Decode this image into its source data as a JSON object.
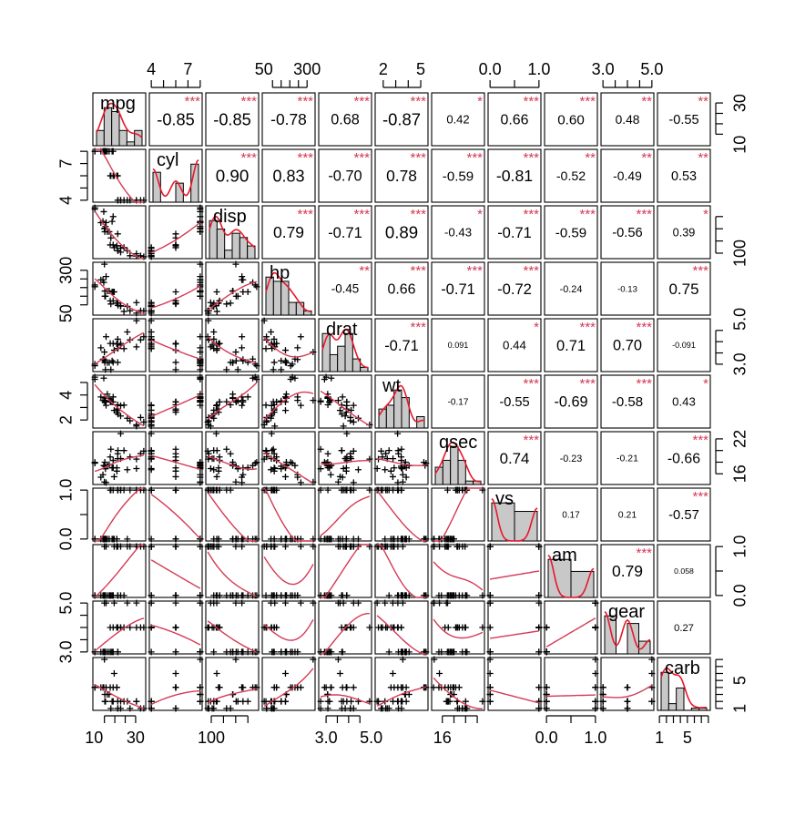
{
  "chart_data": {
    "type": "scatter",
    "title": "",
    "variables": [
      "mpg",
      "cyl",
      "disp",
      "hp",
      "drat",
      "wt",
      "qsec",
      "vs",
      "am",
      "gear",
      "carb"
    ],
    "ranges": {
      "mpg": [
        10.4,
        33.9
      ],
      "cyl": [
        4,
        8
      ],
      "disp": [
        71.1,
        472
      ],
      "hp": [
        52,
        335
      ],
      "drat": [
        2.76,
        4.93
      ],
      "wt": [
        1.513,
        5.424
      ],
      "qsec": [
        14.5,
        22.9
      ],
      "vs": [
        0,
        1
      ],
      "am": [
        0,
        1
      ],
      "gear": [
        3,
        5
      ],
      "carb": [
        1,
        8
      ]
    },
    "data": {
      "mpg": [
        21,
        21,
        22.8,
        21.4,
        18.7,
        18.1,
        14.3,
        24.4,
        22.8,
        19.2,
        17.8,
        16.4,
        17.3,
        15.2,
        10.4,
        10.4,
        14.7,
        32.4,
        30.4,
        33.9,
        21.5,
        15.5,
        15.2,
        13.3,
        19.2,
        27.3,
        26,
        30.4,
        15.8,
        19.7,
        15,
        21.4
      ],
      "cyl": [
        6,
        6,
        4,
        6,
        8,
        6,
        8,
        4,
        4,
        6,
        6,
        8,
        8,
        8,
        8,
        8,
        8,
        4,
        4,
        4,
        4,
        8,
        8,
        8,
        8,
        4,
        4,
        4,
        8,
        6,
        8,
        4
      ],
      "disp": [
        160,
        160,
        108,
        258,
        360,
        225,
        360,
        146.7,
        140.8,
        167.6,
        167.6,
        275.8,
        275.8,
        275.8,
        472,
        460,
        440,
        78.7,
        75.7,
        71.1,
        120.1,
        318,
        304,
        350,
        400,
        79,
        120.3,
        95.1,
        351,
        145,
        301,
        121
      ],
      "hp": [
        110,
        110,
        93,
        110,
        175,
        105,
        245,
        62,
        95,
        123,
        123,
        180,
        180,
        180,
        205,
        215,
        230,
        66,
        52,
        65,
        97,
        150,
        150,
        245,
        175,
        66,
        91,
        113,
        264,
        175,
        335,
        109
      ],
      "drat": [
        3.9,
        3.9,
        3.85,
        3.08,
        3.15,
        2.76,
        3.21,
        3.69,
        3.92,
        3.92,
        3.92,
        3.07,
        3.07,
        3.07,
        2.93,
        3,
        3.23,
        4.08,
        4.93,
        4.22,
        3.7,
        2.76,
        3.15,
        3.73,
        3.08,
        4.08,
        4.43,
        3.77,
        4.22,
        3.62,
        3.54,
        4.11
      ],
      "wt": [
        2.62,
        2.875,
        2.32,
        3.215,
        3.44,
        3.46,
        3.57,
        3.19,
        3.15,
        3.44,
        3.44,
        4.07,
        3.73,
        3.78,
        5.25,
        5.424,
        5.345,
        2.2,
        1.615,
        1.835,
        2.465,
        3.52,
        3.435,
        3.84,
        3.845,
        1.935,
        2.14,
        1.513,
        3.17,
        2.77,
        3.57,
        2.78
      ],
      "qsec": [
        16.46,
        17.02,
        18.61,
        19.44,
        17.02,
        20.22,
        15.84,
        20,
        22.9,
        18.3,
        18.9,
        17.4,
        17.6,
        18,
        17.98,
        17.82,
        17.42,
        19.47,
        18.52,
        19.9,
        20.01,
        16.87,
        17.3,
        15.41,
        17.05,
        18.9,
        16.7,
        16.9,
        14.5,
        15.5,
        14.6,
        18.6
      ],
      "vs": [
        0,
        0,
        1,
        1,
        0,
        1,
        0,
        1,
        1,
        1,
        1,
        0,
        0,
        0,
        0,
        0,
        0,
        1,
        1,
        1,
        1,
        0,
        0,
        0,
        0,
        1,
        0,
        1,
        0,
        0,
        0,
        1
      ],
      "am": [
        1,
        1,
        1,
        0,
        0,
        0,
        0,
        0,
        0,
        0,
        0,
        0,
        0,
        0,
        0,
        0,
        0,
        1,
        1,
        1,
        0,
        0,
        0,
        0,
        0,
        1,
        1,
        1,
        1,
        1,
        1,
        1
      ],
      "gear": [
        4,
        4,
        4,
        3,
        3,
        3,
        3,
        4,
        4,
        4,
        4,
        3,
        3,
        3,
        3,
        3,
        3,
        4,
        4,
        4,
        3,
        3,
        3,
        3,
        3,
        4,
        5,
        5,
        5,
        5,
        5,
        4
      ],
      "carb": [
        4,
        4,
        1,
        1,
        2,
        1,
        4,
        2,
        2,
        4,
        4,
        3,
        3,
        3,
        4,
        4,
        4,
        1,
        2,
        1,
        1,
        2,
        2,
        4,
        2,
        1,
        2,
        2,
        4,
        6,
        8,
        2
      ]
    },
    "correlations": [
      [
        "-0.85",
        "***"
      ],
      [
        "-0.85",
        "***"
      ],
      [
        "-0.78",
        "***"
      ],
      [
        "0.68",
        "***"
      ],
      [
        "-0.87",
        "***"
      ],
      [
        "0.42",
        "*"
      ],
      [
        "0.66",
        "***"
      ],
      [
        "0.60",
        "***"
      ],
      [
        "0.48",
        "**"
      ],
      [
        "-0.55",
        "**"
      ],
      [
        "0.90",
        "***"
      ],
      [
        "0.83",
        "***"
      ],
      [
        "-0.70",
        "***"
      ],
      [
        "0.78",
        "***"
      ],
      [
        "-0.59",
        "***"
      ],
      [
        "-0.81",
        "***"
      ],
      [
        "-0.52",
        "**"
      ],
      [
        "-0.49",
        "**"
      ],
      [
        "0.53",
        "**"
      ],
      [
        "0.79",
        "***"
      ],
      [
        "-0.71",
        "***"
      ],
      [
        "0.89",
        "***"
      ],
      [
        "-0.43",
        "*"
      ],
      [
        "-0.71",
        "***"
      ],
      [
        "-0.59",
        "***"
      ],
      [
        "-0.56",
        "***"
      ],
      [
        "0.39",
        "*"
      ],
      [
        "-0.45",
        "**"
      ],
      [
        "0.66",
        "***"
      ],
      [
        "-0.71",
        "***"
      ],
      [
        "-0.72",
        "***"
      ],
      [
        "-0.24",
        ""
      ],
      [
        "-0.13",
        ""
      ],
      [
        "0.75",
        "***"
      ],
      [
        "-0.71",
        "***"
      ],
      [
        "0.091",
        ""
      ],
      [
        "0.44",
        "*"
      ],
      [
        "0.71",
        "***"
      ],
      [
        "0.70",
        "***"
      ],
      [
        "-0.091",
        ""
      ],
      [
        "-0.17",
        ""
      ],
      [
        "-0.55",
        "***"
      ],
      [
        "-0.69",
        "***"
      ],
      [
        "-0.58",
        "***"
      ],
      [
        "0.43",
        "*"
      ],
      [
        "0.74",
        "***"
      ],
      [
        "-0.23",
        ""
      ],
      [
        "-0.21",
        ""
      ],
      [
        "-0.66",
        "***"
      ],
      [
        "0.17",
        ""
      ],
      [
        "0.21",
        ""
      ],
      [
        "-0.57",
        "***"
      ],
      [
        "0.79",
        "***"
      ],
      [
        "0.058",
        ""
      ],
      [
        "0.27",
        ""
      ]
    ],
    "top_axis": [
      {
        "col": 1,
        "labels": [
          [
            "4",
            4
          ],
          [
            "7",
            7
          ]
        ]
      },
      {
        "col": 3,
        "labels": [
          [
            "50",
            50
          ],
          [
            "300",
            300
          ]
        ]
      },
      {
        "col": 5,
        "labels": [
          [
            "2",
            2
          ],
          [
            "5",
            5
          ]
        ]
      },
      {
        "col": 7,
        "labels": [
          [
            "0.0",
            0
          ],
          [
            "1.0",
            1
          ]
        ]
      },
      {
        "col": 9,
        "labels": [
          [
            "3.0",
            3
          ],
          [
            "5.0",
            5
          ]
        ]
      }
    ],
    "bottom_axis": [
      {
        "col": 0,
        "labels": [
          [
            "10",
            10
          ],
          [
            "30",
            30
          ]
        ]
      },
      {
        "col": 2,
        "labels": [
          [
            "100",
            100
          ]
        ]
      },
      {
        "col": 4,
        "labels": [
          [
            "3.0",
            3
          ],
          [
            "5.0",
            5
          ]
        ]
      },
      {
        "col": 6,
        "labels": [
          [
            "16",
            16
          ]
        ]
      },
      {
        "col": 8,
        "labels": [
          [
            "0.0",
            0
          ],
          [
            "1.0",
            1
          ]
        ]
      },
      {
        "col": 10,
        "labels": [
          [
            "1",
            1
          ],
          [
            "5",
            5
          ]
        ]
      }
    ],
    "left_axis": [
      {
        "row": 1,
        "labels": [
          [
            "4",
            4
          ],
          [
            "7",
            7
          ]
        ]
      },
      {
        "row": 3,
        "labels": [
          [
            "50",
            50
          ],
          [
            "300",
            300
          ]
        ]
      },
      {
        "row": 5,
        "labels": [
          [
            "2",
            2
          ],
          [
            "4",
            4
          ]
        ]
      },
      {
        "row": 7,
        "labels": [
          [
            "0.0",
            0
          ],
          [
            "1.0",
            1
          ]
        ]
      },
      {
        "row": 9,
        "labels": [
          [
            "3.0",
            3
          ],
          [
            "5.0",
            5
          ]
        ]
      }
    ],
    "right_axis": [
      {
        "row": 0,
        "labels": [
          [
            "10",
            10
          ],
          [
            "30",
            30
          ]
        ]
      },
      {
        "row": 2,
        "labels": [
          [
            "100",
            100
          ]
        ]
      },
      {
        "row": 4,
        "labels": [
          [
            "3.0",
            3
          ],
          [
            "5.0",
            5
          ]
        ]
      },
      {
        "row": 6,
        "labels": [
          [
            "16",
            16
          ],
          [
            "22",
            22
          ]
        ]
      },
      {
        "row": 8,
        "labels": [
          [
            "0.0",
            0
          ],
          [
            "1.0",
            1
          ]
        ]
      },
      {
        "row": 10,
        "labels": [
          [
            "1",
            1
          ],
          [
            "5",
            5
          ]
        ]
      }
    ],
    "colors": {
      "smooth": "#d43a55",
      "density": "#e8172b",
      "stars": "#d43a55",
      "hist_fill": "#c8c8c8"
    },
    "grid": false,
    "legend": "none"
  }
}
